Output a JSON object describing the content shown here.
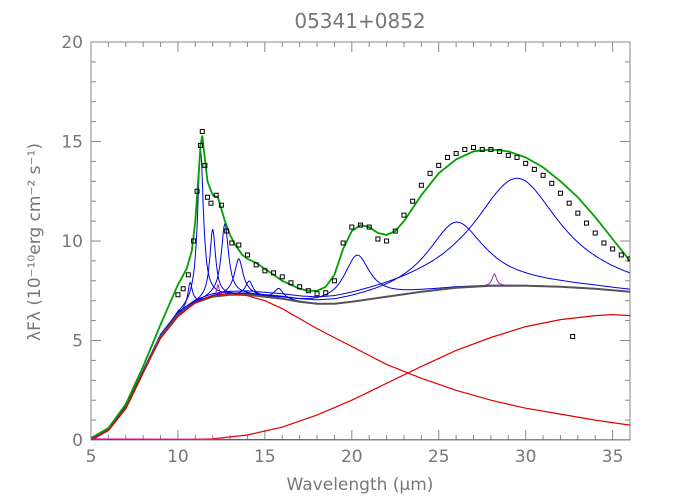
{
  "chart_data": {
    "type": "line",
    "title": "05341+0852",
    "xlabel": "Wavelength (μm)",
    "ylabel": "λFλ (10⁻¹⁰erg cm⁻² s⁻¹)",
    "xlim": [
      5,
      36
    ],
    "ylim": [
      0,
      20
    ],
    "x_ticks": [
      5,
      10,
      15,
      20,
      25,
      30,
      35
    ],
    "y_ticks": [
      0,
      5,
      10,
      15,
      20
    ],
    "x_tick_labels": [
      "5",
      "10",
      "15",
      "20",
      "25",
      "30",
      "35"
    ],
    "y_tick_labels": [
      "0",
      "5",
      "10",
      "15",
      "20"
    ],
    "grid": false,
    "legend": "none",
    "colors": {
      "observed": "#000000",
      "total_fit": "#00a000",
      "dust_continuum": "#555555",
      "blackbody": "#e00000",
      "features": "#0000dd",
      "lines": "#a020c0",
      "stellar": "#ff00b0"
    },
    "observed": {
      "marker": "open-square",
      "x": [
        10.0,
        10.3,
        10.6,
        10.9,
        11.1,
        11.3,
        11.4,
        11.55,
        11.7,
        11.9,
        12.2,
        12.5,
        12.8,
        13.1,
        13.5,
        14.0,
        14.5,
        15.0,
        15.5,
        16.0,
        16.5,
        17.0,
        17.5,
        18.0,
        18.5,
        19.0,
        19.5,
        20.0,
        20.5,
        21.0,
        21.5,
        22.0,
        22.5,
        23.0,
        23.5,
        24.0,
        24.5,
        25.0,
        25.5,
        26.0,
        26.5,
        27.0,
        27.5,
        28.0,
        28.5,
        29.0,
        29.5,
        30.0,
        30.5,
        31.0,
        31.5,
        32.0,
        32.5,
        33.0,
        33.5,
        34.0,
        34.5,
        35.0,
        35.5,
        36.0,
        32.7
      ],
      "y": [
        7.3,
        7.6,
        8.3,
        10.0,
        12.5,
        14.8,
        15.5,
        13.8,
        12.2,
        11.9,
        12.3,
        11.8,
        10.5,
        9.9,
        9.8,
        9.3,
        8.8,
        8.5,
        8.4,
        8.2,
        7.9,
        7.7,
        7.5,
        7.35,
        7.4,
        8.0,
        9.9,
        10.7,
        10.8,
        10.7,
        10.1,
        10.0,
        10.5,
        11.3,
        12.0,
        12.8,
        13.4,
        13.8,
        14.2,
        14.4,
        14.6,
        14.7,
        14.6,
        14.6,
        14.5,
        14.3,
        14.2,
        13.9,
        13.6,
        13.3,
        12.9,
        12.4,
        11.9,
        11.4,
        10.9,
        10.4,
        9.9,
        9.6,
        9.3,
        9.1,
        5.2
      ]
    },
    "series": [
      {
        "key": "total_fit",
        "x": [
          5,
          6,
          7,
          8,
          9,
          9.5,
          10,
          10.5,
          10.8,
          11.0,
          11.2,
          11.3,
          11.4,
          11.5,
          11.7,
          12.0,
          12.3,
          12.7,
          13.0,
          13.3,
          13.7,
          14.0,
          14.5,
          15.0,
          15.5,
          16.0,
          16.5,
          17.0,
          17.5,
          18.0,
          18.5,
          19.0,
          19.5,
          20.0,
          20.5,
          21.0,
          21.5,
          22.0,
          22.5,
          23.0,
          24.0,
          25.0,
          26.0,
          27.0,
          28.0,
          29.0,
          30.0,
          31.0,
          32.0,
          33.0,
          34.0,
          35.0,
          36.0
        ],
        "y": [
          0.1,
          0.6,
          1.8,
          3.7,
          5.8,
          6.8,
          7.8,
          8.6,
          9.5,
          11.0,
          13.5,
          14.8,
          15.3,
          14.5,
          13.0,
          12.3,
          12.2,
          11.0,
          10.3,
          9.8,
          9.3,
          9.1,
          8.9,
          8.6,
          8.3,
          8.0,
          7.8,
          7.6,
          7.5,
          7.5,
          7.7,
          8.3,
          9.6,
          10.5,
          10.8,
          10.7,
          10.4,
          10.3,
          10.5,
          11.0,
          12.3,
          13.4,
          14.1,
          14.5,
          14.6,
          14.5,
          14.2,
          13.7,
          13.0,
          12.2,
          11.2,
          10.1,
          9.0
        ]
      },
      {
        "key": "dust_continuum",
        "x": [
          5,
          6,
          7,
          8,
          9,
          10,
          11,
          12,
          13,
          14,
          15,
          16,
          17,
          18,
          19,
          20,
          22,
          24,
          26,
          28,
          30,
          32,
          34,
          36
        ],
        "y": [
          0.0,
          0.5,
          1.6,
          3.4,
          5.2,
          6.3,
          6.9,
          7.2,
          7.3,
          7.3,
          7.2,
          7.1,
          6.95,
          6.85,
          6.85,
          6.95,
          7.2,
          7.45,
          7.65,
          7.75,
          7.75,
          7.7,
          7.6,
          7.45
        ]
      },
      {
        "key": "blackbody",
        "x": [
          5,
          6,
          7,
          8,
          9,
          10,
          11,
          12,
          13,
          14,
          15,
          16,
          17,
          18,
          20,
          22,
          24,
          26,
          28,
          30,
          32,
          34,
          36
        ],
        "y": [
          0.0,
          0.5,
          1.6,
          3.4,
          5.1,
          6.2,
          6.9,
          7.25,
          7.35,
          7.25,
          7.0,
          6.6,
          6.1,
          5.6,
          4.7,
          3.8,
          3.1,
          2.5,
          2.0,
          1.6,
          1.3,
          1.0,
          0.75
        ]
      },
      {
        "key": "blackbody",
        "x": [
          5,
          8,
          10,
          12,
          14,
          16,
          18,
          20,
          22,
          24,
          26,
          28,
          30,
          32,
          34,
          35,
          36
        ],
        "y": [
          0.0,
          0.0,
          0.01,
          0.06,
          0.25,
          0.65,
          1.25,
          2.0,
          2.85,
          3.7,
          4.5,
          5.15,
          5.7,
          6.05,
          6.25,
          6.3,
          6.25
        ]
      },
      {
        "key": "stellar",
        "x": [
          5,
          10,
          15,
          20,
          25,
          30,
          36
        ],
        "y": [
          0.05,
          0.04,
          0.02,
          0.01,
          0.01,
          0.01,
          0.0
        ]
      }
    ],
    "features": [
      {
        "center": 10.7,
        "height": 1.2,
        "width": 0.16
      },
      {
        "center": 11.3,
        "height": 7.6,
        "width": 0.2
      },
      {
        "center": 12.0,
        "height": 3.4,
        "width": 0.2
      },
      {
        "center": 12.7,
        "height": 3.6,
        "width": 0.25
      },
      {
        "center": 13.5,
        "height": 1.8,
        "width": 0.3
      },
      {
        "center": 14.1,
        "height": 0.7,
        "width": 0.25
      },
      {
        "center": 15.8,
        "height": 0.5,
        "width": 0.3
      },
      {
        "center": 20.3,
        "height": 2.3,
        "width": 0.9
      },
      {
        "center": 26.0,
        "height": 3.3,
        "width": 2.0
      },
      {
        "center": 29.5,
        "height": 5.4,
        "width": 3.0
      }
    ],
    "lines": [
      {
        "center": 12.3,
        "height": 0.6,
        "width": 0.08
      },
      {
        "center": 28.2,
        "height": 0.6,
        "width": 0.15
      }
    ]
  }
}
